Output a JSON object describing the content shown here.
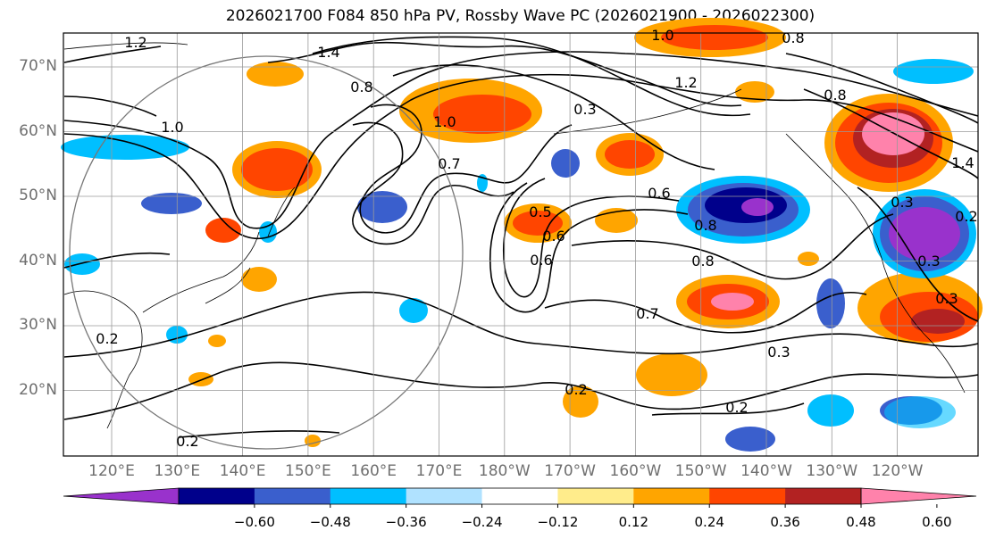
{
  "title": "2026021700 F084 850 hPa PV, Rossby Wave PC (2026021900 - 2026022300)",
  "map": {
    "lat_labels": [
      {
        "lat": 70,
        "text": "70°N"
      },
      {
        "lat": 60,
        "text": "60°N"
      },
      {
        "lat": 50,
        "text": "50°N"
      },
      {
        "lat": 40,
        "text": "40°N"
      },
      {
        "lat": 30,
        "text": "30°N"
      },
      {
        "lat": 20,
        "text": "20°N"
      }
    ],
    "lon_labels": [
      {
        "lon": 120,
        "text": "120°E"
      },
      {
        "lon": 130,
        "text": "130°E"
      },
      {
        "lon": 140,
        "text": "140°E"
      },
      {
        "lon": 150,
        "text": "150°E"
      },
      {
        "lon": 160,
        "text": "160°E"
      },
      {
        "lon": 170,
        "text": "170°E"
      },
      {
        "lon": 180,
        "text": "180°W"
      },
      {
        "lon": 190,
        "text": "170°W"
      },
      {
        "lon": 200,
        "text": "160°W"
      },
      {
        "lon": 210,
        "text": "150°W"
      },
      {
        "lon": 220,
        "text": "140°W"
      },
      {
        "lon": 230,
        "text": "130°W"
      },
      {
        "lon": 240,
        "text": "120°W"
      }
    ],
    "contour_labels": [
      "1.2",
      "1.4",
      "0.8",
      "1.0",
      "0.2",
      "0.3",
      "0.5",
      "0.6",
      "0.7",
      "0.8",
      "1.0",
      "1.2",
      "0.3",
      "0.2",
      "0.6",
      "0.8",
      "0.7",
      "0.6",
      "0.3",
      "0.3",
      "0.2",
      "0.2",
      "1.0",
      "0.8",
      "0.8",
      "1.4",
      "0.3",
      "0.2"
    ]
  },
  "colorbar": {
    "colors": [
      "#9932cc",
      "#00008b",
      "#3a5fcd",
      "#00bfff",
      "#b0e2ff",
      "#ffffff",
      "#ffec8b",
      "#ffa500",
      "#ff4500",
      "#b22222",
      "#ff82ab"
    ],
    "ticks": [
      "−0.60",
      "−0.48",
      "−0.36",
      "−0.24",
      "−0.12",
      "0.12",
      "0.24",
      "0.36",
      "0.48",
      "0.60"
    ]
  }
}
